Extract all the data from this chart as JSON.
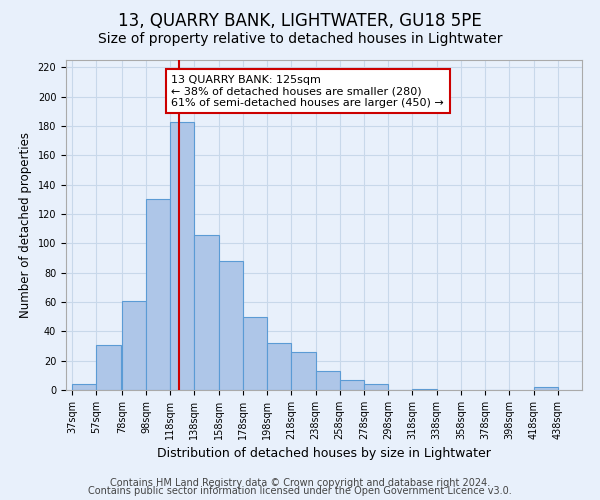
{
  "title": "13, QUARRY BANK, LIGHTWATER, GU18 5PE",
  "subtitle": "Size of property relative to detached houses in Lightwater",
  "xlabel": "Distribution of detached houses by size in Lightwater",
  "ylabel": "Number of detached properties",
  "bar_values": [
    4,
    31,
    61,
    130,
    183,
    106,
    88,
    50,
    32,
    26,
    13,
    7,
    4,
    0,
    1,
    0,
    2
  ],
  "bar_left_edges": [
    37,
    57,
    78,
    98,
    118,
    138,
    158,
    178,
    198,
    218,
    238,
    258,
    278,
    298,
    318,
    378,
    418
  ],
  "bin_width": 20,
  "tick_labels": [
    "37sqm",
    "57sqm",
    "78sqm",
    "98sqm",
    "118sqm",
    "138sqm",
    "158sqm",
    "178sqm",
    "198sqm",
    "218sqm",
    "238sqm",
    "258sqm",
    "278sqm",
    "298sqm",
    "318sqm",
    "338sqm",
    "358sqm",
    "378sqm",
    "398sqm",
    "418sqm",
    "438sqm"
  ],
  "tick_positions": [
    37,
    57,
    78,
    98,
    118,
    138,
    158,
    178,
    198,
    218,
    238,
    258,
    278,
    298,
    318,
    338,
    358,
    378,
    398,
    418,
    438
  ],
  "bar_color": "#aec6e8",
  "bar_edge_color": "#5b9bd5",
  "grid_color": "#c8d8ea",
  "bg_color": "#e8f0fb",
  "vline_x": 125,
  "vline_color": "#cc0000",
  "annotation_text": "13 QUARRY BANK: 125sqm\n← 38% of detached houses are smaller (280)\n61% of semi-detached houses are larger (450) →",
  "annotation_box_color": "#ffffff",
  "annotation_box_edge": "#cc0000",
  "ylim": [
    0,
    225
  ],
  "yticks": [
    0,
    20,
    40,
    60,
    80,
    100,
    120,
    140,
    160,
    180,
    200,
    220
  ],
  "footer_line1": "Contains HM Land Registry data © Crown copyright and database right 2024.",
  "footer_line2": "Contains public sector information licensed under the Open Government Licence v3.0.",
  "title_fontsize": 12,
  "subtitle_fontsize": 10,
  "xlabel_fontsize": 9,
  "ylabel_fontsize": 8.5,
  "tick_fontsize": 7,
  "annotation_fontsize": 8,
  "footer_fontsize": 7
}
